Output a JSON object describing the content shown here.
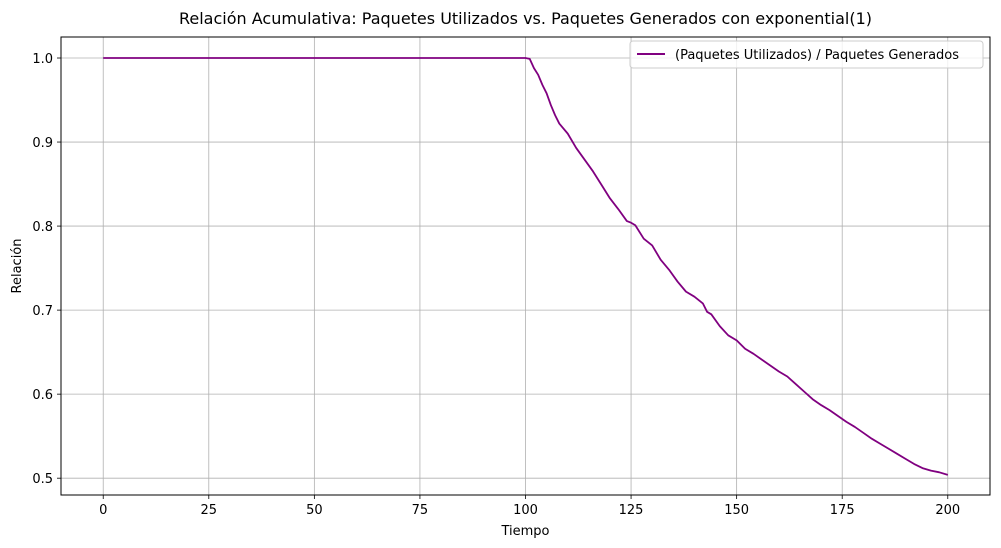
{
  "chart_data": {
    "type": "line",
    "title": "Relación Acumulativa: Paquetes Utilizados vs. Paquetes Generados con exponential(1)",
    "xlabel": "Tiempo",
    "ylabel": "Relación",
    "xlim": [
      -10,
      210
    ],
    "ylim": [
      0.48,
      1.025
    ],
    "xticks": [
      0,
      25,
      50,
      75,
      100,
      125,
      150,
      175,
      200
    ],
    "xtick_labels": [
      "0",
      "25",
      "50",
      "75",
      "100",
      "125",
      "150",
      "175",
      "200"
    ],
    "yticks": [
      0.5,
      0.6,
      0.7,
      0.8,
      0.9,
      1.0
    ],
    "ytick_labels": [
      "0.5",
      "0.6",
      "0.7",
      "0.8",
      "0.9",
      "1.0"
    ],
    "grid": true,
    "legend_position": "top-right",
    "series": [
      {
        "name": "(Paquetes Utilizados) / Paquetes Generados",
        "color": "#800080",
        "x": [
          0,
          100,
          101,
          102,
          103,
          104,
          105,
          106,
          107,
          108,
          110,
          112,
          114,
          116,
          118,
          120,
          122,
          124,
          125,
          126,
          128,
          130,
          132,
          134,
          136,
          138,
          140,
          142,
          143,
          144,
          146,
          148,
          150,
          152,
          154,
          156,
          158,
          160,
          162,
          164,
          166,
          168,
          170,
          172,
          174,
          176,
          178,
          180,
          182,
          184,
          186,
          188,
          190,
          192,
          194,
          196,
          198,
          200
        ],
        "y": [
          1.0,
          1.0,
          0.999,
          0.988,
          0.98,
          0.968,
          0.958,
          0.944,
          0.932,
          0.922,
          0.91,
          0.893,
          0.879,
          0.865,
          0.849,
          0.833,
          0.82,
          0.806,
          0.804,
          0.801,
          0.785,
          0.777,
          0.76,
          0.748,
          0.734,
          0.722,
          0.716,
          0.708,
          0.698,
          0.695,
          0.681,
          0.67,
          0.664,
          0.654,
          0.648,
          0.641,
          0.634,
          0.627,
          0.621,
          0.612,
          0.603,
          0.594,
          0.587,
          0.581,
          0.574,
          0.567,
          0.561,
          0.554,
          0.547,
          0.541,
          0.535,
          0.529,
          0.523,
          0.517,
          0.512,
          0.509,
          0.507,
          0.504
        ]
      }
    ]
  }
}
